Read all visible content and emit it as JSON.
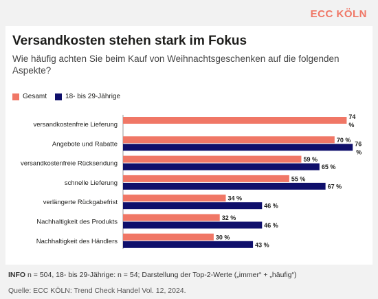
{
  "brand": "ECC KÖLN",
  "title": "Versandkosten stehen stark im Fokus",
  "subtitle": "Wie häufig achten Sie beim Kauf von Weihnachtsgeschenken auf die folgenden Aspekte?",
  "colors": {
    "gesamt": "#f07766",
    "young": "#0f0f6b",
    "brand": "#f07766"
  },
  "footer": {
    "info_label": "INFO",
    "info_text": " n = 504, 18- bis 29-Jährige: n = 54; Darstellung der Top-2-Werte („immer“ + „häufig“)",
    "source": "Quelle: ECC KÖLN: Trend Check Handel Vol. 12, 2024."
  },
  "chart_data": {
    "type": "bar",
    "orientation": "horizontal",
    "categories": [
      "versandkostenfreie Lieferung",
      "Angebote und Rabatte",
      "versandkostenfreie Rücksendung",
      "schnelle Lieferung",
      "verlängerte Rückgabefrist",
      "Nachhaltigkeit des Produkts",
      "Nachhaltigkeit des Händlers"
    ],
    "series": [
      {
        "name": "Gesamt",
        "values": [
          74,
          70,
          59,
          55,
          34,
          32,
          30
        ]
      },
      {
        "name": "18- bis 29-Jährige",
        "values": [
          null,
          76,
          65,
          67,
          46,
          46,
          43
        ]
      }
    ],
    "value_suffix": " %",
    "xlim": [
      0,
      78
    ],
    "legend": "top-left"
  }
}
